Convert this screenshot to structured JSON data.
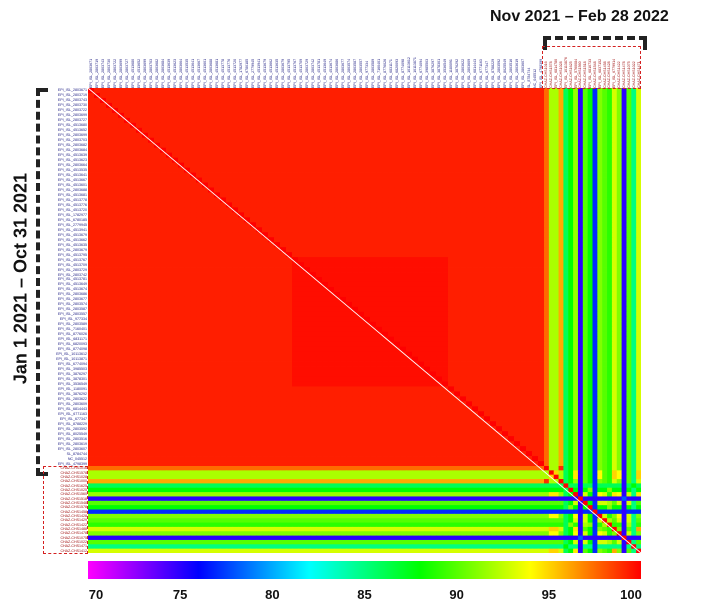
{
  "labels": {
    "top_period": "Nov 2021 – Feb 28 2022",
    "left_period": "Jan 1 2021 – Oct 31 2021"
  },
  "chart_data": {
    "type": "heatmap",
    "description_scale": "pairwise sequence identity (%)",
    "n_early": 76,
    "n_late": 20,
    "early_block_value": 99.3,
    "early_subblock_value": 99.7,
    "late_cross_value": 90.5,
    "late_internal_value": 90,
    "late_cross_profile": [
      97.5,
      92,
      92,
      96,
      86,
      88,
      91.5,
      75,
      90,
      88,
      77,
      91,
      90,
      89,
      93,
      91,
      75,
      90,
      85,
      93
    ],
    "diagonal_value": 100,
    "colorbar": {
      "min": 70,
      "max": 100,
      "ticks": [
        "70",
        "75",
        "80",
        "85",
        "90",
        "95",
        "100"
      ],
      "colors": [
        "#ff00ff",
        "#0000ff",
        "#00ffff",
        "#00ff00",
        "#ffff00",
        "#ff0000"
      ]
    },
    "row_labels_visible": [
      "EPI_ISL_2803671",
      "EPI_ISL_2803719",
      "EPI_ISL_2803743",
      "EPI_ISL_2803730",
      "EPI_ISL_2803722",
      "EPI_ISL_2803699",
      "EPI_ISL_2803727",
      "EPI_ISL_4513680",
      "EPI_ISL_4513652",
      "EPI_ISL_2803699",
      "EPI_ISL_2803703",
      "EPI_ISL_2803682",
      "EPI_ISL_2803684",
      "EPI_ISL_4513639",
      "EPI_ISL_4513623",
      "EPI_ISL_2803664",
      "EPI_ISL_4513535",
      "EPI_ISL_4513641",
      "EPI_ISL_4513667",
      "EPI_ISL_4513601",
      "EPI_ISL_2803688",
      "EPI_ISL_4513681",
      "EPI_ISL_4513778",
      "EPI_ISL_4513776",
      "EPI_ISL_4513720",
      "EPI_ISL_1782977",
      "EPI_ISL_6780185",
      "EPI_ISL_2779945",
      "EPI_ISL_4513941",
      "EPI_ISL_4513679",
      "EPI_ISL_4513662",
      "EPI_ISL_4513635",
      "EPI_ISL_2803679",
      "EPI_ISL_4513795",
      "EPI_ISL_4513767",
      "EPI_ISL_4513709",
      "EPI_ISL_2803729",
      "EPI_ISL_2803742",
      "EPI_ISL_4513781",
      "EPI_ISL_4513649",
      "EPI_ISL_4513674",
      "EPI_ISL_2803686",
      "EPI_ISL_2803677",
      "EPI_ISL_2803574",
      "EPI_ISL_2803587",
      "EPI_ISL_2803557",
      "EPI_ISL_977334",
      "EPI_ISL_2803589",
      "EPI_ISL_7160401",
      "EPI_ISL_8776026",
      "EPI_ISL_6831171",
      "EPI_ISL_6820093",
      "EPI_ISL_8774098",
      "EPI_ISL_10113612",
      "EPI_ISL_10113871",
      "EPI_ISL_6774094",
      "EPI_ISL_3985503",
      "EPI_ISL_3876297",
      "EPI_ISL_3878301",
      "EPI_ISL_3536549",
      "EPI_ISL_1180091",
      "EPI_ISL_3876292",
      "EPI_ISL_2803622",
      "EPI_ISL_2803609",
      "EPI_ISL_6814443",
      "EPI_ISL_6771163",
      "EPI_ISL_677347",
      "EPI_ISL_8788229",
      "EPI_ISL_2803592",
      "EPI_ISL_8025549",
      "EPI_ISL_2803516",
      "EPI_ISL_2803619",
      "EPI_ISL_2803607",
      "SL_8784744",
      "NC_045512",
      "EPI_ISL_4798399"
    ],
    "late_row_labels_visible": [
      "CHAZ-CHS1016",
      "CHAZ-CHS1578",
      "CHAZ-CHS1028",
      "CHAZ-CHS1000",
      "CHAZ-CHS1625",
      "CHAZ-CHS1025",
      "CHAZ-CHS1560",
      "CHAZ-CHS1518",
      "CHAZ-CHS1548",
      "CHAZ-CHS1578",
      "CHAZ-CHS1458",
      "CHAZ-CHS1428",
      "CHAZ-CHS1429",
      "CHAZ-CHS1422",
      "CHAZ-CHS1488",
      "CHAZ-CHS1478",
      "CHAZ-CHS1075",
      "CHAZ-CHS1022",
      "CHAZ-CHS1471",
      "CHAZ-CHS1412"
    ],
    "late_col_labels_visible": [
      "CHAZ-CHS1016",
      "CHAZ-CHS1578",
      "EPI_ISL_6814780",
      "CHAZ-CHS1028",
      "EPI_ISL_10113876",
      "CHAZ-CHS1625",
      "EPI_ISL_5760084",
      "CHAZ-CHS1560",
      "CHAZ-CHS1518",
      "EPI_ISL_6810733",
      "CHAZ-CHS1548",
      "EPI_ISL_6837152",
      "CHAZ-CHS1458",
      "CHAZ-CHS1428",
      "EPI_ISL_6779914",
      "CHAZ-CHS1422",
      "CHAZ-CHS1478",
      "CHAZ-CHS1075",
      "CHAZ-CHS1022",
      "CHAZ-CHS1471"
    ]
  }
}
